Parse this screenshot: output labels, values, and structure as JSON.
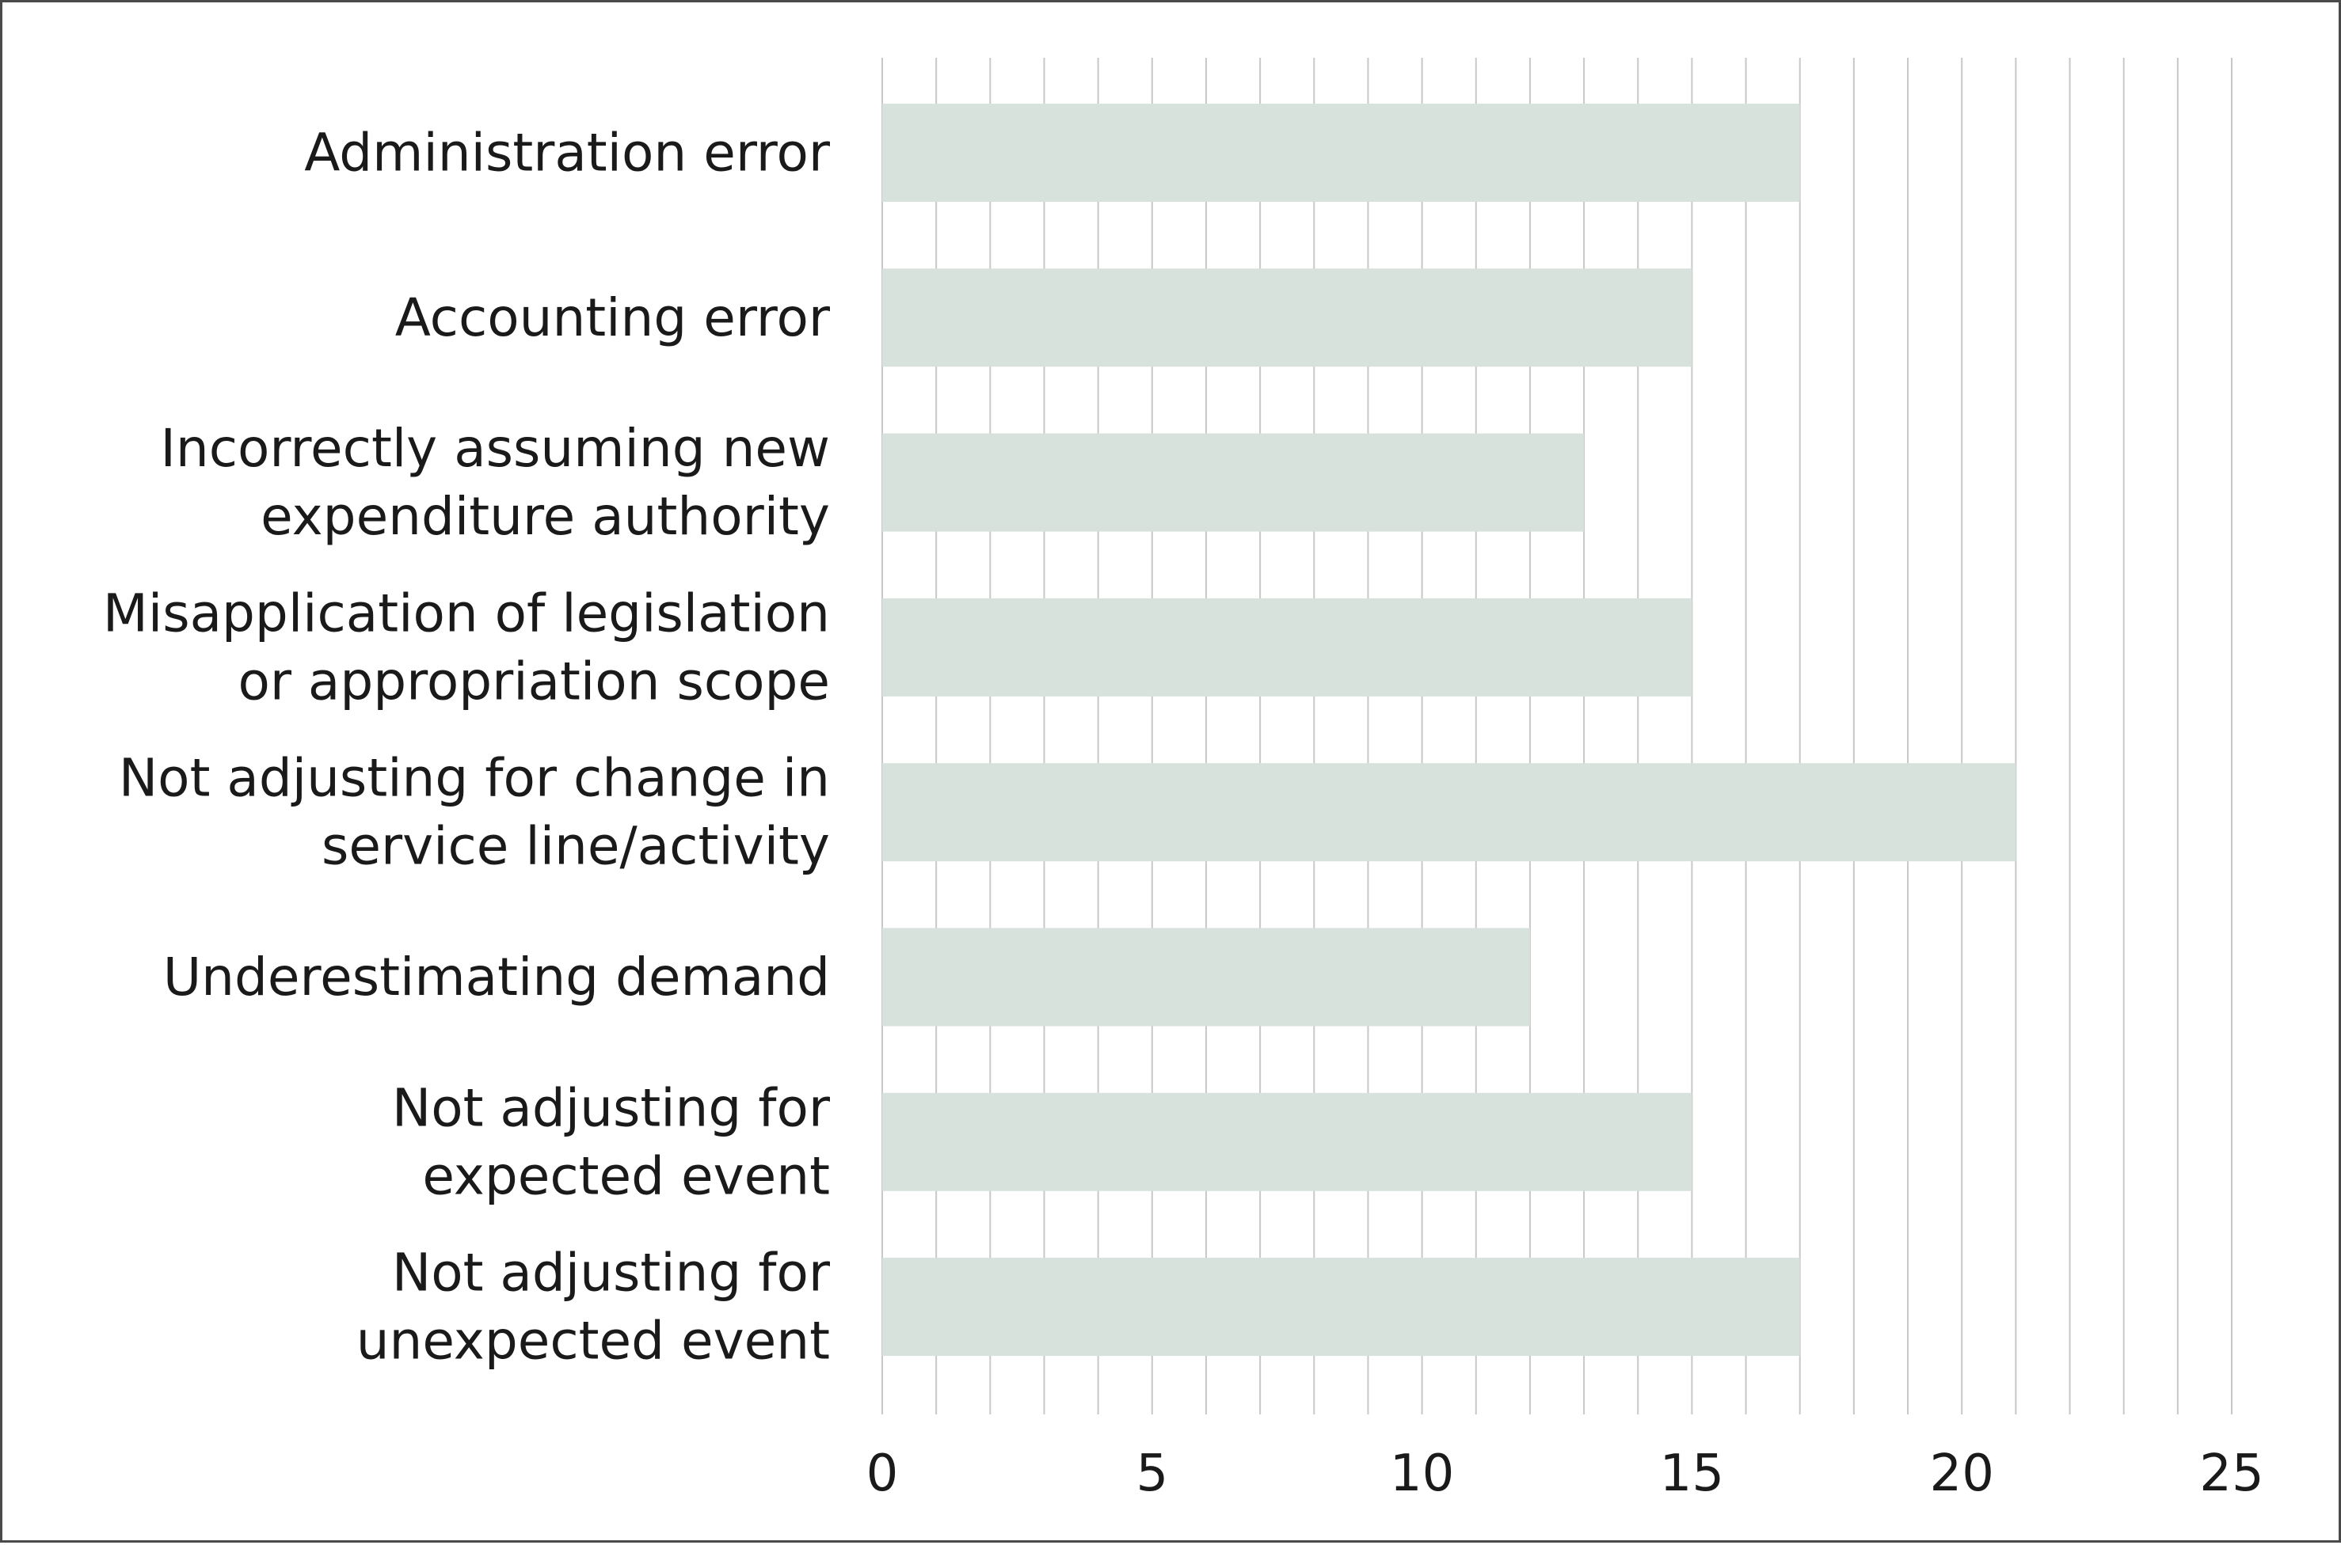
{
  "chart_data": {
    "type": "bar",
    "orientation": "horizontal",
    "categories": [
      [
        "Administration error"
      ],
      [
        "Accounting error"
      ],
      [
        "Incorrectly assuming new",
        "expenditure authority"
      ],
      [
        "Misapplication of legislation",
        "or appropriation scope"
      ],
      [
        "Not adjusting for change in",
        "service line/activity"
      ],
      [
        "Underestimating demand"
      ],
      [
        "Not adjusting for",
        "expected event"
      ],
      [
        "Not adjusting for",
        "unexpected event"
      ]
    ],
    "values": [
      17,
      15,
      13,
      15,
      21,
      12,
      15,
      17
    ],
    "xlim": [
      0,
      25
    ],
    "x_ticks": [
      "0",
      "5",
      "10",
      "15",
      "20",
      "25"
    ],
    "x_tick_values": [
      0,
      5,
      10,
      15,
      20,
      25
    ],
    "grid_step": 1,
    "grid": true,
    "legend": "none",
    "title": "",
    "xlabel": "",
    "ylabel": "",
    "colors": {
      "bar": "#d7e2dc",
      "grid": "#c8c8c8",
      "frame": "#4a4a4a",
      "text": "#1a1a1a"
    }
  }
}
